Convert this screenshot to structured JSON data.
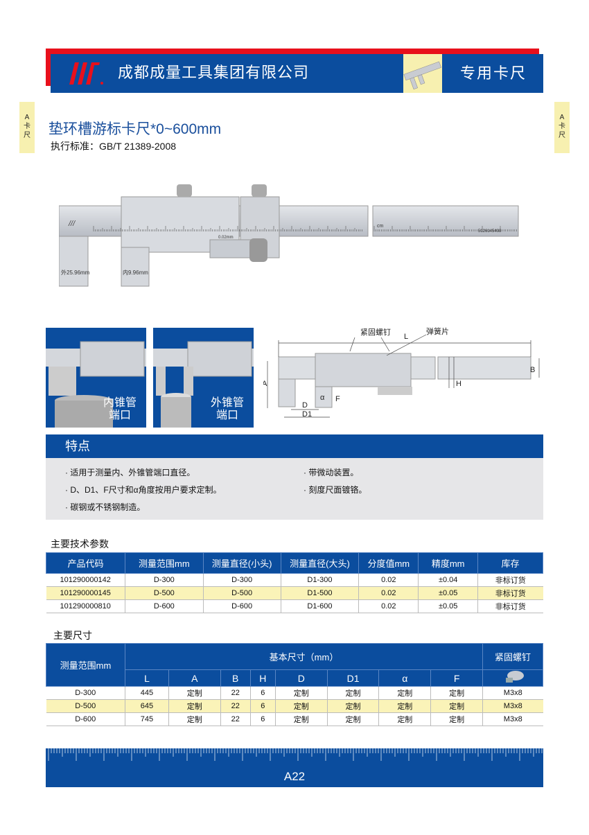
{
  "header": {
    "company": "成都成量工具集团有限公司",
    "category": "专用卡尺",
    "brand_color": "#0b4d9e",
    "accent_color": "#e8101c",
    "logo_icon": "chengliang-logo"
  },
  "side_tab": {
    "letter": "A",
    "text": "卡尺"
  },
  "product": {
    "title": "垫环槽游标卡尺*0~600mm",
    "standard": "执行标准：GB/T 21389-2008"
  },
  "caliper_image": {
    "jaw_labels": [
      "外25.96mm",
      "内9.96mm"
    ],
    "serial": "5126145498",
    "unit": "cm",
    "vernier": "0.02mm"
  },
  "panels": [
    {
      "label_line1": "内锥管",
      "label_line2": "端口"
    },
    {
      "label_line1": "外锥管",
      "label_line2": "端口"
    }
  ],
  "diagram": {
    "labels": {
      "screw": "紧固螺钉",
      "spring": "弹簧片",
      "L": "L",
      "A": "A",
      "B": "B",
      "H": "H",
      "D": "D",
      "D1": "D1",
      "alpha": "α",
      "F": "F"
    }
  },
  "features": {
    "heading": "特点",
    "items": [
      "· 适用于测量内、外锥管端口直径。",
      "· D、D1、F尺寸和α角度按用户要求定制。",
      "· 碳钢或不锈钢制造。",
      "· 带微动装置。",
      "· 刻度尺面镀铬。"
    ]
  },
  "tech_params": {
    "heading": "主要技术参数",
    "columns": [
      "产品代码",
      "测量范围mm",
      "测量直径(小头)",
      "测量直径(大头)",
      "分度值mm",
      "精度mm",
      "库存"
    ],
    "rows": [
      [
        "101290000142",
        "D-300",
        "D-300",
        "D1-300",
        "0.02",
        "±0.04",
        "非标订货"
      ],
      [
        "101290000145",
        "D-500",
        "D-500",
        "D1-500",
        "0.02",
        "±0.05",
        "非标订货"
      ],
      [
        "101290000810",
        "D-600",
        "D-600",
        "D1-600",
        "0.02",
        "±0.05",
        "非标订货"
      ]
    ]
  },
  "dimensions": {
    "heading": "主要尺寸",
    "range_col": "测量范围mm",
    "group": "基本尺寸（mm）",
    "screw_col": "紧固螺钉",
    "columns": [
      "L",
      "A",
      "B",
      "H",
      "D",
      "D1",
      "α",
      "F"
    ],
    "rows": [
      [
        "D-300",
        "445",
        "定制",
        "22",
        "6",
        "定制",
        "定制",
        "定制",
        "定制",
        "M3x8"
      ],
      [
        "D-500",
        "645",
        "定制",
        "22",
        "6",
        "定制",
        "定制",
        "定制",
        "定制",
        "M3x8"
      ],
      [
        "D-600",
        "745",
        "定制",
        "22",
        "6",
        "定制",
        "定制",
        "定制",
        "定制",
        "M3x8"
      ]
    ]
  },
  "footer": {
    "page": "A22"
  }
}
